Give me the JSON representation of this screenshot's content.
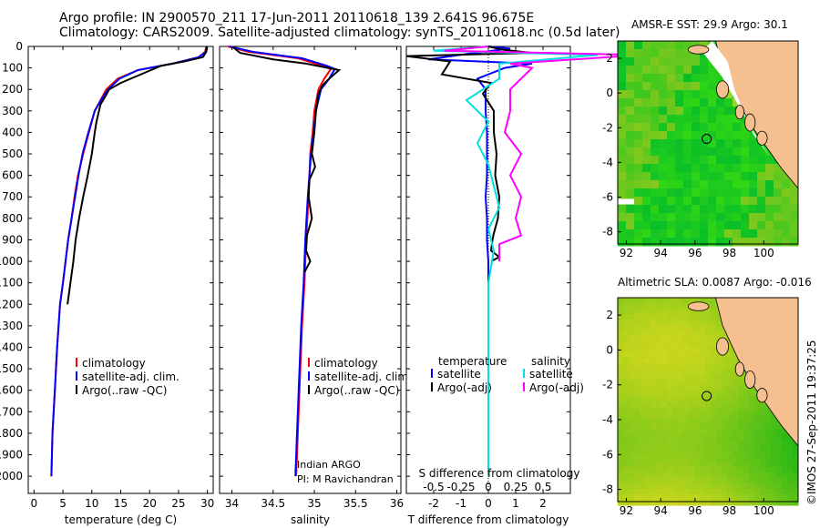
{
  "header": {
    "line1": "Argo profile: IN 2900570_211 17-Jun-2011 20110618_139 2.641S 96.675E",
    "line2": "Climatology: CARS2009. Satellite-adjusted climatology: synTS_20110618.nc (0.5d later)"
  },
  "colors": {
    "climatology": "#ff0000",
    "satellite": "#0000ff",
    "argo": "#000000",
    "sal_satellite": "#00e0e0",
    "sal_argo": "#ff00ff",
    "land": "#f5bf8f"
  },
  "stamp": "©IMOS 27-Sep-2011 19:37:25",
  "annotations": {
    "inst": "Indian ARGO",
    "pi": "PI: M Ravichandran"
  },
  "chart_data": [
    {
      "type": "line",
      "name": "temperature",
      "xlabel": "temperature (deg C)",
      "xlim": [
        -1,
        31
      ],
      "xticks": [
        0,
        5,
        10,
        15,
        20,
        25,
        30
      ],
      "ylim": [
        2080,
        0
      ],
      "yticks": [
        0,
        100,
        200,
        300,
        400,
        500,
        600,
        700,
        800,
        900,
        1000,
        1100,
        1200,
        1300,
        1400,
        1500,
        1600,
        1700,
        1800,
        1900,
        2000
      ],
      "legend": [
        "climatology",
        "satellite-adj. clim.",
        "Argo(..raw -QC)"
      ],
      "legend_position": "lower-center",
      "series": [
        {
          "name": "climatology",
          "color": "#ff0000",
          "x": [
            29.8,
            29.6,
            28.5,
            24,
            18,
            14.5,
            12.5,
            11.5,
            10.5,
            9.5,
            8.5,
            7.6,
            7,
            6.5,
            5.9,
            5,
            4.5,
            4,
            3.6,
            3.2,
            3
          ],
          "y": [
            0,
            25,
            50,
            80,
            110,
            150,
            200,
            250,
            300,
            400,
            500,
            600,
            700,
            800,
            900,
            1100,
            1200,
            1400,
            1600,
            1800,
            2000
          ]
        },
        {
          "name": "satellite-adj. clim.",
          "color": "#0000ff",
          "x": [
            29.9,
            29.7,
            28.5,
            24,
            18,
            14.8,
            12.8,
            11.6,
            10.5,
            9.4,
            8.4,
            7.7,
            7.1,
            6.5,
            5.9,
            5,
            4.5,
            4,
            3.6,
            3.2,
            3
          ],
          "y": [
            0,
            25,
            50,
            80,
            110,
            150,
            200,
            250,
            300,
            400,
            500,
            600,
            700,
            800,
            900,
            1100,
            1200,
            1400,
            1600,
            1800,
            2000
          ]
        },
        {
          "name": "Argo(..raw -QC)",
          "color": "#000000",
          "x": [
            29.9,
            29.8,
            29.2,
            26,
            22,
            15,
            13,
            12.4,
            11.5,
            10.8,
            10.5,
            10,
            9.3,
            8.5,
            7.8,
            7.2,
            6.8,
            6.3,
            5.8
          ],
          "y": [
            0,
            25,
            50,
            70,
            90,
            170,
            200,
            230,
            270,
            350,
            400,
            500,
            600,
            700,
            800,
            900,
            1000,
            1100,
            1200
          ]
        }
      ]
    },
    {
      "type": "line",
      "name": "salinity",
      "xlabel": "salinity",
      "xlim": [
        33.85,
        36.05
      ],
      "xticks": [
        34,
        34.5,
        35,
        35.5,
        36
      ],
      "xticklabels": [
        "34",
        "34.5",
        "35",
        "35.5",
        "36"
      ],
      "ylim": [
        2080,
        0
      ],
      "legend": [
        "climatology",
        "satellite-adj. clim.",
        "Argo(..raw -QC)"
      ],
      "legend_position": "lower-center",
      "series": [
        {
          "name": "climatology",
          "color": "#ff0000",
          "x": [
            33.95,
            34.2,
            34.8,
            35.1,
            35.2,
            35.12,
            35.05,
            35,
            34.98,
            34.95,
            34.93,
            34.9,
            34.88,
            34.85,
            34.82,
            34.8,
            34.78
          ],
          "y": [
            0,
            25,
            55,
            90,
            105,
            150,
            200,
            300,
            400,
            500,
            700,
            900,
            1100,
            1300,
            1600,
            1800,
            2000
          ]
        },
        {
          "name": "satellite-adj. clim.",
          "color": "#0000ff",
          "x": [
            33.97,
            34.25,
            34.85,
            35.15,
            35.25,
            35.18,
            35.08,
            35.02,
            34.99,
            34.96,
            34.92,
            34.89,
            34.87,
            34.84,
            34.81,
            34.79,
            34.77
          ],
          "y": [
            0,
            25,
            55,
            90,
            105,
            150,
            200,
            300,
            400,
            500,
            700,
            900,
            1100,
            1300,
            1600,
            1800,
            2000
          ]
        },
        {
          "name": "Argo(..raw -QC)",
          "color": "#000000",
          "x": [
            34,
            34.1,
            34.5,
            34.9,
            35.3,
            35.18,
            35.1,
            35.05,
            35.02,
            35,
            34.97,
            35.01,
            34.94,
            34.93,
            34.97,
            34.91,
            34.9,
            34.95,
            34.88
          ],
          "y": [
            0,
            30,
            60,
            80,
            110,
            150,
            180,
            220,
            300,
            400,
            500,
            560,
            620,
            700,
            800,
            880,
            950,
            1000,
            1050
          ]
        }
      ]
    },
    {
      "type": "line",
      "name": "difference",
      "xlabel": "T difference from climatology",
      "xlim": [
        -3,
        3
      ],
      "xticks": [
        -2,
        -1,
        0,
        1,
        2
      ],
      "xticklabels": [
        "-2",
        "-1",
        "0",
        "1",
        "2"
      ],
      "x2label": "S difference from climatology",
      "x2ticks": [
        -0.5,
        -0.25,
        0,
        0.25,
        0.5
      ],
      "x2ticklabels": [
        "-0.5",
        "-0.25",
        "0",
        "0.25",
        "0.5"
      ],
      "ylim": [
        2080,
        0
      ],
      "legend_headers": [
        "temperature",
        "salinity"
      ],
      "legend": [
        "satellite",
        "Argo(-adj)",
        "satellite",
        "Argo(-adj)"
      ],
      "legend_position": "lower-center",
      "series": [
        {
          "name": "satellite",
          "group": "temperature",
          "color": "#0000ff",
          "x": [
            0,
            0.8,
            -0.5,
            -2.2,
            1.6,
            0.6,
            -0.4,
            -0.1,
            -0.1,
            -0.05,
            -0.05,
            -0.05,
            -0.1,
            -0.05,
            -0.05,
            0,
            0,
            0,
            0,
            0
          ],
          "y": [
            0,
            10,
            30,
            60,
            80,
            100,
            150,
            200,
            300,
            400,
            500,
            600,
            700,
            800,
            900,
            1000,
            1200,
            1500,
            1800,
            2000
          ]
        },
        {
          "name": "Argo(-adj)",
          "group": "temperature",
          "color": "#000000",
          "x": [
            0,
            0.5,
            1.6,
            -3,
            -1.4,
            -1.7,
            0.1,
            -0.2,
            0.2,
            0.2,
            0.3,
            0.25,
            0.4,
            0.35,
            0.2,
            0.15,
            0.1,
            0.4,
            0.1
          ],
          "y": [
            0,
            15,
            30,
            45,
            70,
            130,
            170,
            220,
            300,
            400,
            500,
            600,
            700,
            800,
            870,
            900,
            950,
            980,
            1000
          ]
        },
        {
          "name": "satellite",
          "group": "salinity",
          "color": "#00e0e0",
          "x": [
            0,
            -0.5,
            1,
            0.1,
            0.1,
            -0.2,
            0,
            -0.1,
            0,
            0.05,
            0.1,
            0,
            0.05,
            0,
            0,
            0,
            0
          ],
          "y": [
            0,
            20,
            40,
            80,
            150,
            250,
            350,
            450,
            550,
            650,
            750,
            850,
            950,
            1100,
            1400,
            1800,
            2000
          ]
        },
        {
          "name": "Argo(-adj)",
          "group": "salinity",
          "color": "#ff00ff",
          "x": [
            0,
            -0.4,
            1.4,
            0.2,
            0.4,
            0.2,
            0.2,
            0.15,
            0.3,
            0.2,
            0.3,
            0.25,
            0.3,
            0.1,
            0.1,
            0.1
          ],
          "y": [
            0,
            20,
            40,
            80,
            100,
            200,
            300,
            400,
            500,
            600,
            700,
            800,
            880,
            920,
            960,
            1000
          ]
        }
      ]
    },
    {
      "type": "heatmap",
      "name": "sst_map",
      "title": "AMSR-E SST: 29.9 Argo: 30.1",
      "xlim": [
        91.5,
        102
      ],
      "ylim": [
        -8.7,
        3
      ],
      "xticks": [
        92,
        94,
        96,
        98,
        100
      ],
      "yticks": [
        -8,
        -6,
        -4,
        -2,
        0,
        2
      ],
      "marker": {
        "lon": 96.675,
        "lat": -2.641
      }
    },
    {
      "type": "heatmap",
      "name": "sla_map",
      "title": "Altimetric SLA: 0.0087 Argo: -0.016",
      "xlim": [
        91.5,
        102
      ],
      "ylim": [
        -8.7,
        3
      ],
      "xticks": [
        92,
        94,
        96,
        98,
        100
      ],
      "yticks": [
        -8,
        -6,
        -4,
        -2,
        0,
        2
      ],
      "marker": {
        "lon": 96.675,
        "lat": -2.641
      }
    }
  ]
}
